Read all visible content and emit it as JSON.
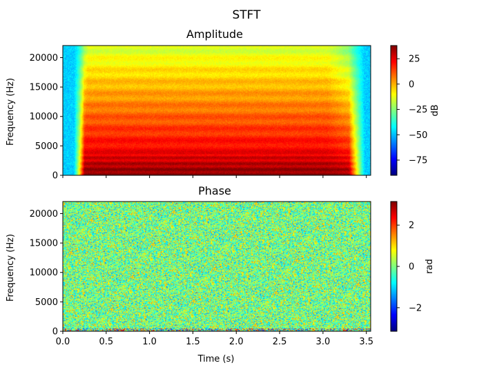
{
  "suptitle": "STFT",
  "chart_data": [
    {
      "type": "heatmap",
      "title": "Amplitude",
      "xlabel": "",
      "ylabel": "Frequency (Hz)",
      "xlim": [
        0.0,
        3.55
      ],
      "ylim": [
        0,
        22050
      ],
      "x_ticks": [
        0.0,
        0.5,
        1.0,
        1.5,
        2.0,
        2.5,
        3.0,
        3.5
      ],
      "y_ticks": [
        0,
        5000,
        10000,
        15000,
        20000
      ],
      "x_tick_labels_visible": false,
      "colormap": "jet",
      "colorbar": {
        "label": "dB",
        "range": [
          -90,
          38
        ],
        "ticks": [
          25,
          0,
          -25,
          -50,
          -75
        ]
      },
      "description_values": {
        "signal_start_s": 0.25,
        "signal_end_s": 3.3,
        "strong_band_hz": [
          0,
          3500
        ],
        "harmonic_rows_hz": [
          1000,
          2000,
          3000,
          5000,
          7000,
          9000,
          11000,
          13000,
          15000
        ]
      }
    },
    {
      "type": "heatmap",
      "title": "Phase",
      "xlabel": "Time (s)",
      "ylabel": "Frequency (Hz)",
      "xlim": [
        0.0,
        3.55
      ],
      "ylim": [
        0,
        22050
      ],
      "x_ticks": [
        0.0,
        0.5,
        1.0,
        1.5,
        2.0,
        2.5,
        3.0,
        3.5
      ],
      "y_ticks": [
        0,
        5000,
        10000,
        15000,
        20000
      ],
      "x_tick_labels_visible": true,
      "colormap": "jet",
      "colorbar": {
        "label": "rad",
        "range": [
          -3.1416,
          3.1416
        ],
        "ticks": [
          2,
          0,
          -2
        ]
      }
    }
  ]
}
